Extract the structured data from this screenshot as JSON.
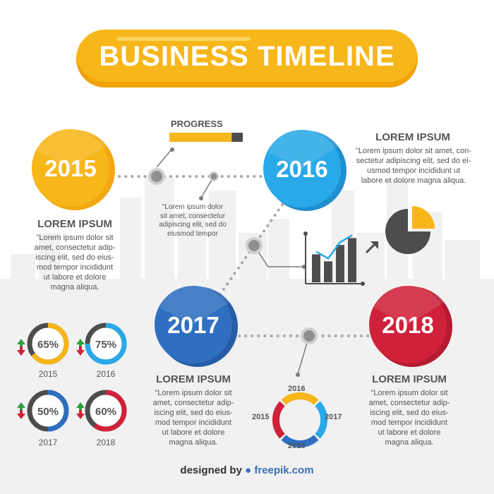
{
  "title": "BUSINESS TIMELINE",
  "progress": {
    "label": "PROGRESS",
    "value": 0.85
  },
  "milestones": [
    {
      "year": "2015",
      "color": "#f7b619"
    },
    {
      "year": "2016",
      "color": "#29a9e8"
    },
    {
      "year": "2017",
      "color": "#2f6fc0"
    },
    {
      "year": "2018",
      "color": "#d0213b"
    }
  ],
  "text_blocks": {
    "b2015": {
      "heading": "LOREM IPSUM",
      "lines": [
        "\"Lorem ipsum dolor sit",
        "amet, consectetur adip-",
        "iscing elit, sed do eius-",
        "mod tempor incididunt",
        "ut labore et dolore",
        "magna aliqua."
      ]
    },
    "b2016": {
      "heading": "LOREM IPSUM",
      "lines": [
        "\"Lorem ipsum dolor sit amet, con-",
        "sectetur adipiscing elit, sed do ei-",
        "usmod tempor incididunt ut",
        "labore et dolore magna aliqua."
      ]
    },
    "b2017": {
      "heading": "LOREM IPSUM",
      "lines": [
        "\"Lorem ipsum dolor sit",
        "amet, consectetur adip-",
        "iscing elit, sed do eius-",
        "mod tempor incididunt",
        "ut labore et dolore",
        "magna aliqua."
      ]
    },
    "b2018": {
      "heading": "LOREM IPSUM",
      "lines": [
        "\"Lorem ipsum dolor sit",
        "amet, consectetur adip-",
        "iscing elit, sed do eius-",
        "mod tempor incididunt",
        "ut labore et dolore",
        "magna aliqua."
      ]
    },
    "small": {
      "lines": [
        "\"Lorem ipsum dolor",
        "sit amet, consectetur",
        "adipiscing elit, sed do",
        "eiusmod tempor"
      ]
    }
  },
  "gauges": [
    {
      "pct_label": "65%",
      "value": 0.65,
      "year": "2015",
      "color": "#f7b619"
    },
    {
      "pct_label": "75%",
      "value": 0.75,
      "year": "2016",
      "color": "#29a9e8"
    },
    {
      "pct_label": "50%",
      "value": 0.5,
      "year": "2017",
      "color": "#2f6fc0"
    },
    {
      "pct_label": "60%",
      "value": 0.6,
      "year": "2018",
      "color": "#d0213b"
    }
  ],
  "donut": {
    "labels": {
      "top": "2016",
      "right": "2017",
      "bottom": "2018",
      "left": "2015"
    },
    "segments": [
      {
        "year": "2016",
        "color": "#29a9e8",
        "share": 0.25
      },
      {
        "year": "2017",
        "color": "#2f6fc0",
        "share": 0.25
      },
      {
        "year": "2018",
        "color": "#d0213b",
        "share": 0.25
      },
      {
        "year": "2015",
        "color": "#f7b619",
        "share": 0.25
      }
    ]
  },
  "pie": {
    "highlight_share": 0.25,
    "highlight_color": "#f7b619",
    "base_color": "#4d4d4d"
  },
  "bars": {
    "values": [
      0.6,
      0.45,
      0.8,
      0.95
    ],
    "color": "#4d4d4d",
    "line_color": "#29a9e8"
  },
  "credit": {
    "prefix": "designed by",
    "brand": "freepik.com"
  },
  "colors": {
    "gray": "#555555",
    "connector": "#a7a7a7",
    "node": "#8f8f8f"
  }
}
